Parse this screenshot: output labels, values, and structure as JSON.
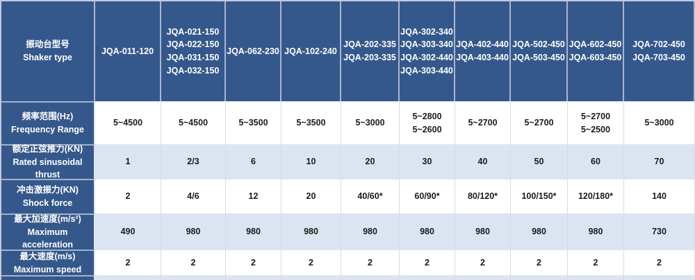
{
  "table": {
    "corner": [
      "振动台型号",
      "Shaker type"
    ],
    "columns": [
      [
        "JQA-011-120"
      ],
      [
        "JQA-021-150",
        "JQA-022-150",
        "JQA-031-150",
        "JQA-032-150"
      ],
      [
        "JQA-062-230"
      ],
      [
        "JQA-102-240"
      ],
      [
        "JQA-202-335",
        "JQA-203-335"
      ],
      [
        "JQA-302-340",
        "JQA-303-340",
        "JQA-302-440",
        "JQA-303-440"
      ],
      [
        "JQA-402-440",
        "JQA-403-440"
      ],
      [
        "JQA-502-450",
        "JQA-503-450"
      ],
      [
        "JQA-602-450",
        "JQA-603-450"
      ],
      [
        "JQA-702-450",
        "JQA-703-450"
      ]
    ],
    "rows": [
      {
        "label": [
          "频率范围(Hz)",
          "Frequency Range"
        ],
        "values": [
          [
            "5~4500"
          ],
          [
            "5~4500"
          ],
          [
            "5~3500"
          ],
          [
            "5~3500"
          ],
          [
            "5~3000"
          ],
          [
            "5~2800",
            "5~2600"
          ],
          [
            "5~2700"
          ],
          [
            "5~2700"
          ],
          [
            "5~2700",
            "5~2500"
          ],
          [
            "5~3000"
          ]
        ]
      },
      {
        "label": [
          "额定正弦推力(KN)",
          "Rated sinusoidal thrust"
        ],
        "values": [
          [
            "1"
          ],
          [
            "2/3"
          ],
          [
            "6"
          ],
          [
            "10"
          ],
          [
            "20"
          ],
          [
            "30"
          ],
          [
            "40"
          ],
          [
            "50"
          ],
          [
            "60"
          ],
          [
            "70"
          ]
        ]
      },
      {
        "label": [
          "冲击激振力(KN)",
          "Shock force"
        ],
        "values": [
          [
            "2"
          ],
          [
            "4/6"
          ],
          [
            "12"
          ],
          [
            "20"
          ],
          [
            "40/60*"
          ],
          [
            "60/90*"
          ],
          [
            "80/120*"
          ],
          [
            "100/150*"
          ],
          [
            "120/180*"
          ],
          [
            "140"
          ]
        ]
      },
      {
        "label": [
          "最大加速度(m/s²)",
          "Maximum acceleration"
        ],
        "values": [
          [
            "490"
          ],
          [
            "980"
          ],
          [
            "980"
          ],
          [
            "980"
          ],
          [
            "980"
          ],
          [
            "980"
          ],
          [
            "980"
          ],
          [
            "980"
          ],
          [
            "980"
          ],
          [
            "730"
          ]
        ]
      },
      {
        "label": [
          "最大速度(m/s)",
          "Maximum speed"
        ],
        "values": [
          [
            "2"
          ],
          [
            "2"
          ],
          [
            "2"
          ],
          [
            "2"
          ],
          [
            "2"
          ],
          [
            "2"
          ],
          [
            "2"
          ],
          [
            "2"
          ],
          [
            "2"
          ],
          [
            "2"
          ]
        ]
      }
    ]
  },
  "colors": {
    "header_bg": "#35588c",
    "header_text": "#ffffff",
    "row_bg": "#ffffff",
    "row_alt_bg": "#dbe5f1",
    "grid_line": "#c3cbda",
    "data_text": "#1b1b1b"
  }
}
